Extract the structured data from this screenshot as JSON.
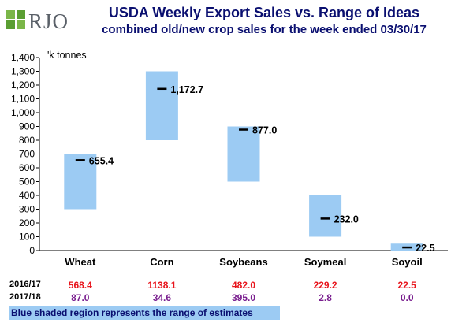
{
  "logo": {
    "text": "RJO"
  },
  "chart_data": {
    "type": "bar",
    "title": "USDA Weekly Export Sales vs. Range of Ideas",
    "subtitle": "combined old/new crop sales for the week ended 03/30/17",
    "ylabel": "'k tonnes",
    "ylim": [
      0,
      1400
    ],
    "yticks": [
      "0",
      "100",
      "200",
      "300",
      "400",
      "500",
      "600",
      "700",
      "800",
      "900",
      "1,000",
      "1,100",
      "1,200",
      "1,300",
      "1,400"
    ],
    "categories": [
      "Wheat",
      "Corn",
      "Soybeans",
      "Soymeal",
      "Soyoil"
    ],
    "range_low": [
      300,
      800,
      500,
      100,
      0
    ],
    "range_high": [
      700,
      1300,
      900,
      400,
      50
    ],
    "actual": [
      655.4,
      1172.7,
      877.0,
      232.0,
      22.5
    ],
    "actual_labels": [
      "655.4",
      "1,172.7",
      "877.0",
      "232.0",
      "22.5"
    ],
    "range_color": "#9ccbf3",
    "table": {
      "rows": [
        {
          "label": "2016/17",
          "color": "#e8141b",
          "values": [
            "568.4",
            "1138.1",
            "482.0",
            "229.2",
            "22.5"
          ]
        },
        {
          "label": "2017/18",
          "color": "#7a1f8f",
          "values": [
            "87.0",
            "34.6",
            "395.0",
            "2.8",
            "0.0"
          ]
        }
      ]
    },
    "footnote": "Blue shaded region represents the range of estimates"
  }
}
